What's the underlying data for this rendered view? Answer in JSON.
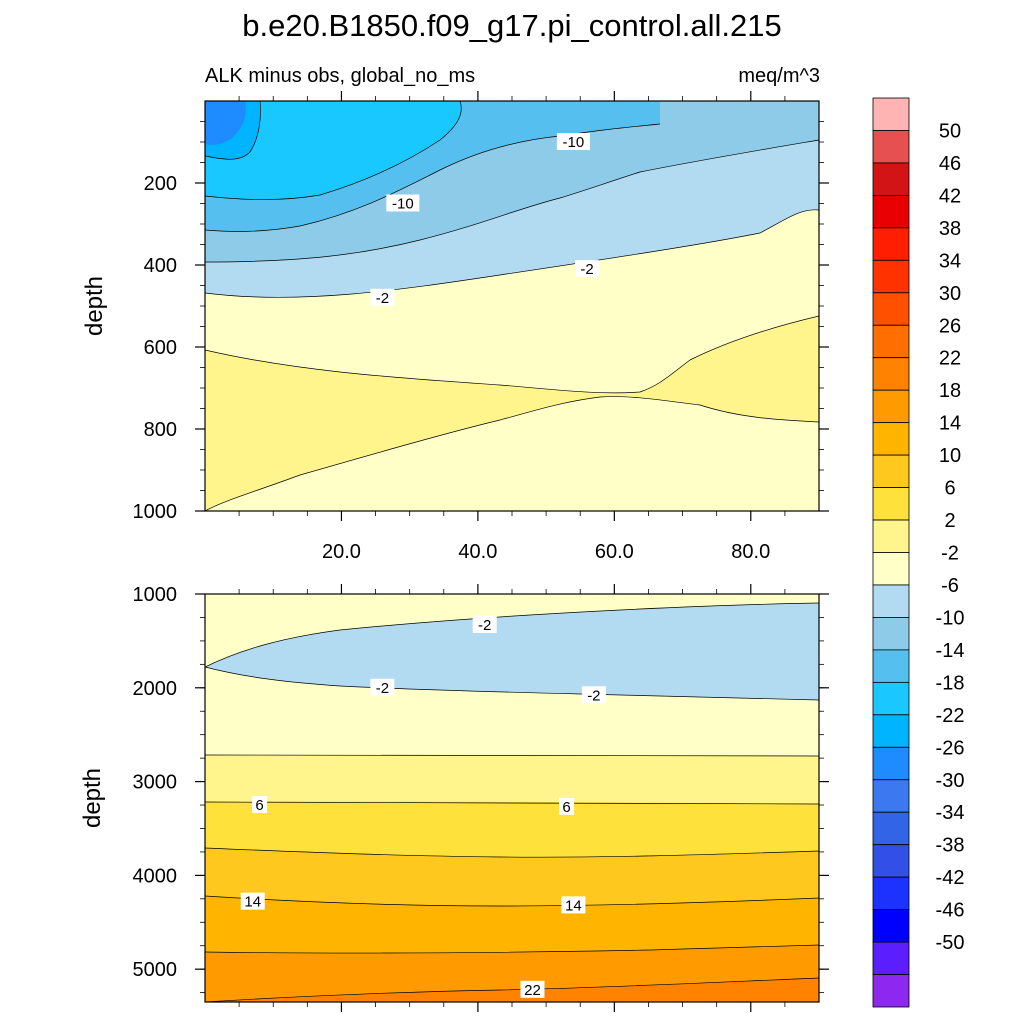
{
  "chart_data": {
    "type": "contour",
    "title": "b.e20.B1850.f09_g17.pi_control.all.215",
    "subtitle": "ALK minus obs, global_no_ms",
    "units": "meq/m^3",
    "x_ticks": [
      20,
      40,
      60,
      80
    ],
    "x_tick_labels": [
      "20.0",
      "40.0",
      "60.0",
      "80.0"
    ],
    "xlim": [
      0,
      90
    ],
    "panels": [
      {
        "ylabel": "depth",
        "ylim": [
          1000,
          0
        ],
        "yticks": [
          200,
          400,
          600,
          800,
          1000
        ],
        "ytick_labels": [
          "200",
          "400",
          "600",
          "800",
          "1000"
        ],
        "contour_labels": [
          {
            "text": "-10",
            "x": 54,
            "depth": 100
          },
          {
            "text": "-10",
            "x": 29,
            "depth": 250
          },
          {
            "text": "-2",
            "x": 56,
            "depth": 410
          },
          {
            "text": "-2",
            "x": 26,
            "depth": 480
          }
        ],
        "regions": [
          {
            "level": "-26",
            "color": "#1e8cff"
          },
          {
            "level": "-22",
            "color": "#00b4ff"
          },
          {
            "level": "-18",
            "color": "#19c8ff"
          },
          {
            "level": "-14",
            "color": "#55c0ef"
          },
          {
            "level": "-10",
            "color": "#8ecbe9"
          },
          {
            "level": "-6",
            "color": "#b2dbf2"
          },
          {
            "level": "-2",
            "color": "#ffffc8"
          },
          {
            "level": "2",
            "color": "#fff58c"
          }
        ]
      },
      {
        "ylabel": "depth",
        "ylim": [
          5350,
          1000
        ],
        "yticks": [
          1000,
          2000,
          3000,
          4000,
          5000
        ],
        "ytick_labels": [
          "1000",
          "2000",
          "3000",
          "4000",
          "5000"
        ],
        "contour_labels": [
          {
            "text": "-2",
            "x": 41,
            "depth": 1330
          },
          {
            "text": "-2",
            "x": 26,
            "depth": 2000
          },
          {
            "text": "-2",
            "x": 57,
            "depth": 2080
          },
          {
            "text": "6",
            "x": 8,
            "depth": 3250
          },
          {
            "text": "6",
            "x": 53,
            "depth": 3270
          },
          {
            "text": "14",
            "x": 7,
            "depth": 4280
          },
          {
            "text": "14",
            "x": 54,
            "depth": 4320
          },
          {
            "text": "22",
            "x": 48,
            "depth": 5220
          }
        ],
        "regions": [
          {
            "level": "-2",
            "color": "#ffffc8"
          },
          {
            "level": "-6",
            "color": "#b2dbf2"
          },
          {
            "level": "2",
            "color": "#fff58c"
          },
          {
            "level": "6",
            "color": "#ffe13c"
          },
          {
            "level": "10",
            "color": "#ffc81e"
          },
          {
            "level": "14",
            "color": "#ffb400"
          },
          {
            "level": "18",
            "color": "#ff9b00"
          },
          {
            "level": "22",
            "color": "#ff8200"
          }
        ]
      }
    ],
    "colorbar": {
      "labels": [
        "50",
        "46",
        "42",
        "38",
        "34",
        "30",
        "26",
        "22",
        "18",
        "14",
        "10",
        "6",
        "2",
        "-2",
        "-6",
        "-10",
        "-14",
        "-18",
        "-22",
        "-26",
        "-30",
        "-34",
        "-38",
        "-42",
        "-46",
        "-50"
      ],
      "colors": [
        "#ffb4b4",
        "#e65050",
        "#d21414",
        "#e60000",
        "#ff1e00",
        "#ff3200",
        "#ff5000",
        "#ff6e00",
        "#ff8200",
        "#ff9b00",
        "#ffb400",
        "#ffc81e",
        "#ffe13c",
        "#fff58c",
        "#ffffc8",
        "#b2dbf2",
        "#8ecbe9",
        "#55c0ef",
        "#19c8ff",
        "#00b4ff",
        "#1e8cff",
        "#3c78f0",
        "#3264e6",
        "#3250e6",
        "#1e32ff",
        "#0000ff",
        "#5a1eff",
        "#8c28f0"
      ]
    }
  }
}
